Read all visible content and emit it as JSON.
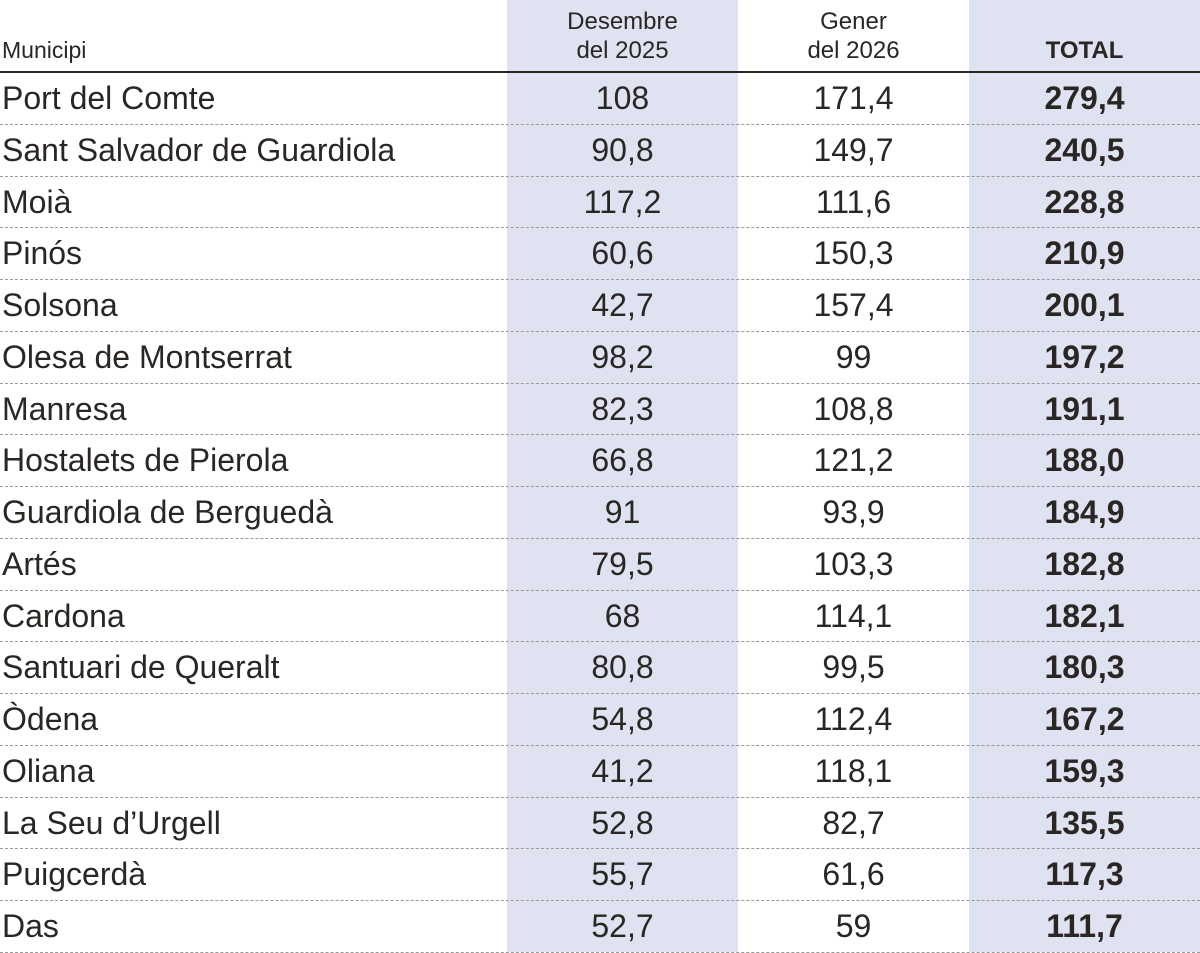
{
  "colors": {
    "shade": "#dfe2f0",
    "text": "#2a2623",
    "rule": "#2a2623",
    "dash": "#9a9a9a"
  },
  "header": {
    "municipi": "Municipi",
    "desembre_line1": "Desembre",
    "desembre_line2": "del 2025",
    "gener_line1": "Gener",
    "gener_line2": "del 2026",
    "total": "TOTAL"
  },
  "rows": [
    {
      "municipi": "Port del Comte",
      "desembre": "108",
      "gener": "171,4",
      "total": "279,4"
    },
    {
      "municipi": "Sant Salvador de Guardiola",
      "desembre": "90,8",
      "gener": "149,7",
      "total": "240,5"
    },
    {
      "municipi": "Moià",
      "desembre": "117,2",
      "gener": "111,6",
      "total": "228,8"
    },
    {
      "municipi": "Pinós",
      "desembre": "60,6",
      "gener": "150,3",
      "total": "210,9"
    },
    {
      "municipi": "Solsona",
      "desembre": "42,7",
      "gener": "157,4",
      "total": "200,1"
    },
    {
      "municipi": "Olesa de Montserrat",
      "desembre": "98,2",
      "gener": "99",
      "total": "197,2"
    },
    {
      "municipi": "Manresa",
      "desembre": "82,3",
      "gener": "108,8",
      "total": "191,1"
    },
    {
      "municipi": "Hostalets de Pierola",
      "desembre": "66,8",
      "gener": "121,2",
      "total": "188,0"
    },
    {
      "municipi": "Guardiola de Berguedà",
      "desembre": "91",
      "gener": "93,9",
      "total": "184,9"
    },
    {
      "municipi": "Artés",
      "desembre": "79,5",
      "gener": "103,3",
      "total": "182,8"
    },
    {
      "municipi": "Cardona",
      "desembre": "68",
      "gener": "114,1",
      "total": "182,1"
    },
    {
      "municipi": "Santuari de Queralt",
      "desembre": "80,8",
      "gener": "99,5",
      "total": "180,3"
    },
    {
      "municipi": "Òdena",
      "desembre": "54,8",
      "gener": "112,4",
      "total": "167,2"
    },
    {
      "municipi": "Oliana",
      "desembre": "41,2",
      "gener": "118,1",
      "total": "159,3"
    },
    {
      "municipi": "La Seu d’Urgell",
      "desembre": "52,8",
      "gener": "82,7",
      "total": "135,5"
    },
    {
      "municipi": "Puigcerdà",
      "desembre": "55,7",
      "gener": "61,6",
      "total": "117,3"
    },
    {
      "municipi": "Das",
      "desembre": "52,7",
      "gener": "59",
      "total": "111,7"
    }
  ]
}
